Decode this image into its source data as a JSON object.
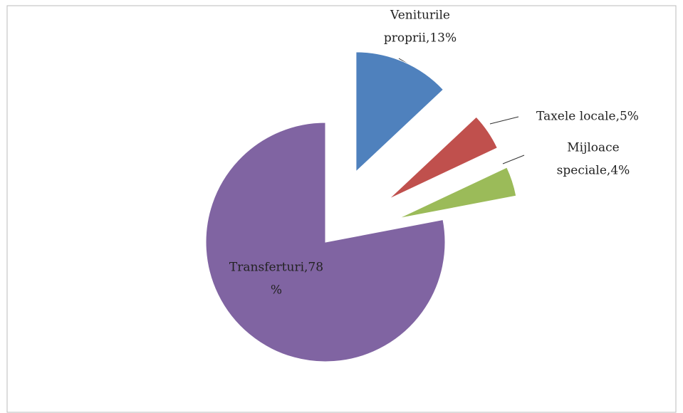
{
  "chart_data": {
    "type": "pie",
    "categories": [
      "Veniturile proprii",
      "Taxele locale",
      "Mijloace speciale",
      "Transferturi"
    ],
    "values": [
      13,
      5,
      4,
      78
    ],
    "value_labels": [
      [
        "Veniturile",
        "proprii,13%"
      ],
      [
        "Taxele locale,5%"
      ],
      [
        "Mijloace",
        "speciale,4%"
      ],
      [
        "Transferturi,78",
        "%"
      ]
    ],
    "colors": [
      "#4f81bd",
      "#c0504d",
      "#9bbb59",
      "#8064a2"
    ],
    "exploded": [
      true,
      true,
      true,
      false
    ]
  }
}
